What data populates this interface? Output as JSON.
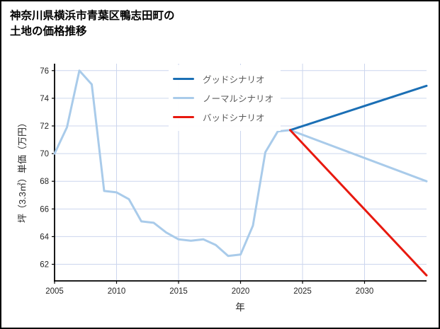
{
  "title": {
    "line1": "神奈川県横浜市青葉区鴨志田町の",
    "line2": "土地の価格推移"
  },
  "chart_data": {
    "type": "line",
    "title": "神奈川県横浜市青葉区鴨志田町の土地の価格推移",
    "xlabel": "年",
    "ylabel": "坪（3.3㎡）単価（万円）",
    "xlim": [
      2005,
      2035
    ],
    "ylim": [
      60.8,
      76.5
    ],
    "xticks": [
      2005,
      2010,
      2015,
      2020,
      2025,
      2030
    ],
    "yticks": [
      62,
      64,
      66,
      68,
      70,
      72,
      74,
      76
    ],
    "grid": true,
    "grid_color": "#ccd6ee",
    "axis_color": "#000000",
    "legend_position": "upper-center-inside",
    "series": [
      {
        "key": "good",
        "name": "グッドシナリオ",
        "color": "#1b6fb5",
        "width": 3,
        "x": [
          2024,
          2035
        ],
        "y": [
          71.7,
          74.9
        ]
      },
      {
        "key": "normal",
        "name": "ノーマルシナリオ",
        "color": "#a9cbea",
        "width": 3,
        "x": [
          2005,
          2006,
          2007,
          2008,
          2009,
          2010,
          2011,
          2012,
          2013,
          2014,
          2015,
          2016,
          2017,
          2018,
          2019,
          2020,
          2021,
          2022,
          2023,
          2024,
          2035
        ],
        "y": [
          70.0,
          71.9,
          76.0,
          75.0,
          67.3,
          67.2,
          66.7,
          65.1,
          65.0,
          64.3,
          63.8,
          63.7,
          63.8,
          63.4,
          62.6,
          62.7,
          64.8,
          70.1,
          71.6,
          71.7,
          68.0
        ]
      },
      {
        "key": "bad",
        "name": "バッドシナリオ",
        "color": "#e8190f",
        "width": 3,
        "x": [
          2024,
          2035
        ],
        "y": [
          71.7,
          61.2
        ]
      }
    ]
  }
}
